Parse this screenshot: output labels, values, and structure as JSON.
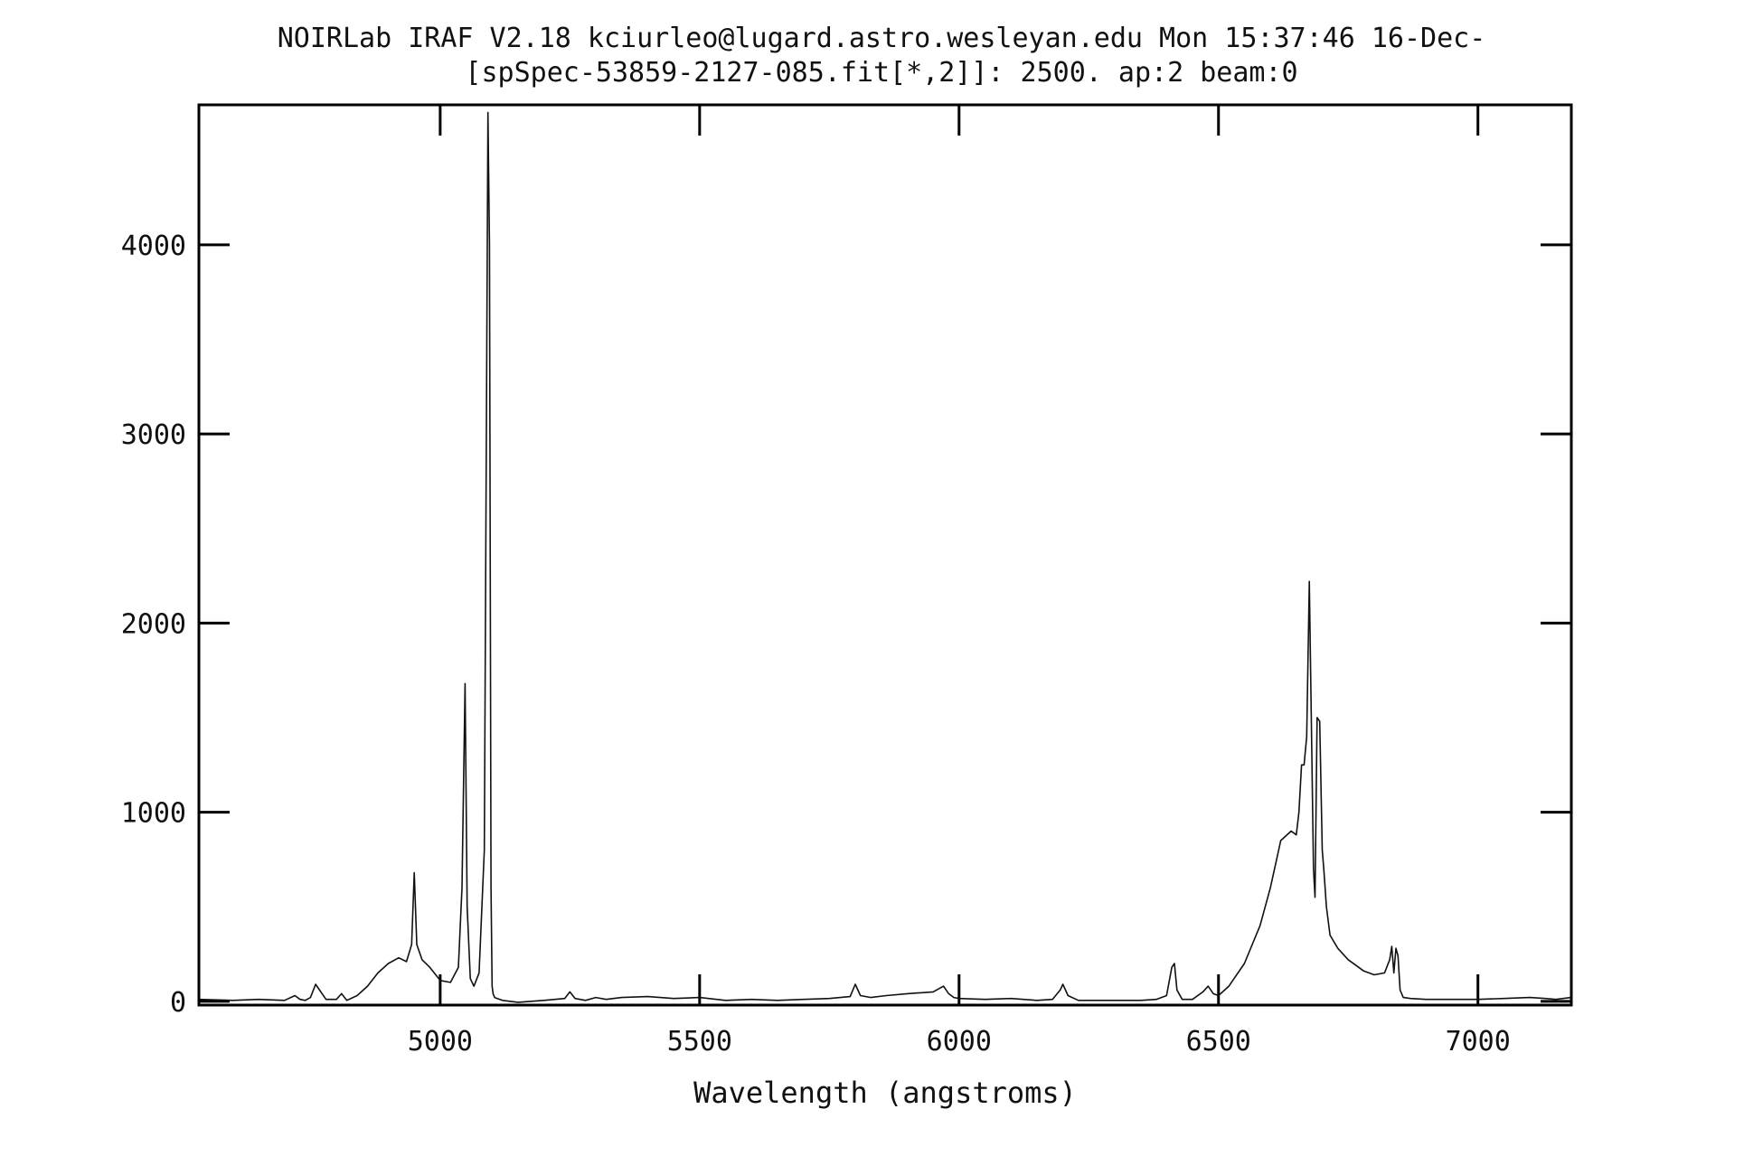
{
  "chart_data": {
    "type": "line",
    "title": "NOIRLab IRAF V2.18 kciurleo@lugard.astro.wesleyan.edu Mon 15:37:46 16-Dec-",
    "subtitle": "[spSpec-53859-2127-085.fit[*,2]]:  2500. ap:2 beam:0",
    "xlabel": "Wavelength (angstroms)",
    "ylabel": "",
    "xlim": [
      4535,
      7180
    ],
    "ylim": [
      -20,
      4740
    ],
    "xticks": [
      5000,
      5500,
      6000,
      6500,
      7000
    ],
    "xtick_labels": [
      "5000",
      "5500",
      "6000",
      "6500",
      "7000"
    ],
    "yticks": [
      0,
      1000,
      2000,
      3000,
      4000
    ],
    "ytick_labels": [
      "0",
      "1000",
      "2000",
      "3000",
      "4000"
    ],
    "grid": false,
    "legend": "none",
    "line_color": "#111111",
    "series": [
      {
        "x": [
          4535,
          4600,
          4650,
          4700,
          4720,
          4730,
          4740,
          4750,
          4760,
          4780,
          4800,
          4810,
          4820,
          4840,
          4860,
          4880,
          4900,
          4920,
          4935,
          4945,
          4950,
          4955,
          4965,
          4980,
          5000,
          5020,
          5035,
          5042,
          5048,
          5052,
          5058,
          5065,
          5075,
          5085,
          5092,
          5095,
          5098,
          5100,
          5102,
          5105,
          5110,
          5120,
          5150,
          5200,
          5240,
          5250,
          5260,
          5280,
          5300,
          5320,
          5350,
          5400,
          5450,
          5500,
          5550,
          5600,
          5650,
          5700,
          5750,
          5790,
          5800,
          5810,
          5830,
          5860,
          5900,
          5950,
          5970,
          5980,
          5990,
          6000,
          6050,
          6100,
          6150,
          6180,
          6195,
          6200,
          6210,
          6230,
          6300,
          6350,
          6380,
          6400,
          6410,
          6415,
          6420,
          6430,
          6450,
          6470,
          6480,
          6490,
          6500,
          6520,
          6550,
          6580,
          6600,
          6620,
          6640,
          6650,
          6655,
          6660,
          6665,
          6670,
          6675,
          6680,
          6683,
          6686,
          6690,
          6695,
          6700,
          6703,
          6708,
          6715,
          6730,
          6750,
          6780,
          6800,
          6820,
          6830,
          6834,
          6838,
          6842,
          6846,
          6850,
          6856,
          6870,
          6900,
          6950,
          7000,
          7050,
          7100,
          7130,
          7150,
          7180
        ],
        "y": [
          10,
          5,
          10,
          5,
          30,
          10,
          5,
          20,
          90,
          10,
          10,
          40,
          5,
          30,
          80,
          150,
          200,
          230,
          210,
          300,
          680,
          300,
          220,
          180,
          110,
          100,
          180,
          600,
          1680,
          500,
          120,
          80,
          150,
          800,
          4700,
          4000,
          600,
          80,
          40,
          20,
          15,
          5,
          -5,
          5,
          15,
          50,
          15,
          5,
          20,
          10,
          20,
          25,
          15,
          20,
          5,
          10,
          5,
          10,
          15,
          25,
          90,
          30,
          20,
          30,
          40,
          50,
          80,
          40,
          20,
          15,
          10,
          15,
          5,
          10,
          60,
          90,
          30,
          5,
          5,
          5,
          10,
          30,
          180,
          200,
          60,
          10,
          10,
          50,
          80,
          40,
          30,
          80,
          200,
          400,
          600,
          850,
          900,
          880,
          1000,
          1250,
          1250,
          1400,
          2220,
          1300,
          700,
          550,
          1500,
          1480,
          800,
          700,
          500,
          350,
          280,
          220,
          160,
          140,
          150,
          220,
          290,
          150,
          280,
          240,
          60,
          20,
          15,
          10,
          10,
          10,
          15,
          20,
          15,
          10,
          20
        ]
      }
    ]
  }
}
